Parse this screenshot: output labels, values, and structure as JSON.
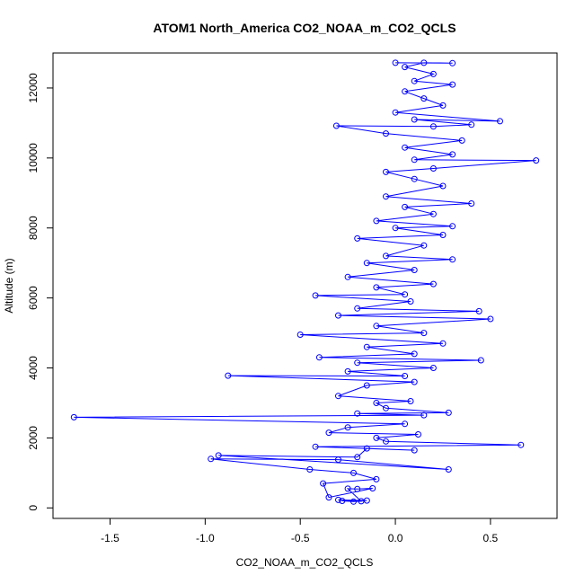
{
  "chart_data": {
    "type": "scatter",
    "title": "ATOM1 North_America CO2_NOAA_m_CO2_QCLS",
    "xlabel": "CO2_NOAA_m_CO2_QCLS",
    "ylabel": "Altitude (m)",
    "xlim": [
      -1.8,
      0.85
    ],
    "ylim": [
      -300,
      13000
    ],
    "xticks": [
      -1.5,
      -1.0,
      -0.5,
      0.0,
      0.5
    ],
    "xtick_labels": [
      "-1.5",
      "-1.0",
      "-0.5",
      "0.0",
      "0.5"
    ],
    "yticks": [
      0,
      2000,
      4000,
      6000,
      8000,
      10000,
      12000
    ],
    "ytick_labels": [
      "0",
      "2000",
      "4000",
      "6000",
      "8000",
      "10000",
      "12000"
    ],
    "grid": false,
    "series_color": "#0000ff",
    "marker": "open-circle",
    "connected": true,
    "series": [
      {
        "points": [
          [
            -0.28,
            200
          ],
          [
            -0.22,
            180
          ],
          [
            -0.15,
            210
          ],
          [
            -0.3,
            230
          ],
          [
            -0.18,
            190
          ],
          [
            -0.25,
            550
          ],
          [
            -0.2,
            540
          ],
          [
            -0.12,
            560
          ],
          [
            -0.35,
            300
          ],
          [
            -0.38,
            700
          ],
          [
            -0.1,
            820
          ],
          [
            -0.22,
            1000
          ],
          [
            -0.45,
            1100
          ],
          [
            -0.97,
            1400
          ],
          [
            -0.3,
            1380
          ],
          [
            0.28,
            1100
          ],
          [
            -0.93,
            1500
          ],
          [
            -0.2,
            1450
          ],
          [
            -0.15,
            1700
          ],
          [
            0.1,
            1650
          ],
          [
            -0.42,
            1750
          ],
          [
            0.66,
            1800
          ],
          [
            -0.05,
            1900
          ],
          [
            -0.1,
            2000
          ],
          [
            0.12,
            2100
          ],
          [
            -0.35,
            2150
          ],
          [
            -0.25,
            2300
          ],
          [
            0.05,
            2400
          ],
          [
            -1.69,
            2590
          ],
          [
            0.15,
            2650
          ],
          [
            -0.2,
            2700
          ],
          [
            0.28,
            2720
          ],
          [
            -0.05,
            2850
          ],
          [
            -0.1,
            3000
          ],
          [
            0.08,
            3050
          ],
          [
            -0.3,
            3200
          ],
          [
            -0.15,
            3500
          ],
          [
            0.1,
            3600
          ],
          [
            -0.88,
            3780
          ],
          [
            0.05,
            3770
          ],
          [
            -0.25,
            3900
          ],
          [
            0.2,
            4000
          ],
          [
            -0.2,
            4150
          ],
          [
            0.45,
            4220
          ],
          [
            -0.4,
            4300
          ],
          [
            0.1,
            4400
          ],
          [
            -0.15,
            4600
          ],
          [
            0.25,
            4700
          ],
          [
            -0.5,
            4950
          ],
          [
            0.15,
            5000
          ],
          [
            -0.1,
            5200
          ],
          [
            0.5,
            5400
          ],
          [
            -0.3,
            5500
          ],
          [
            0.44,
            5620
          ],
          [
            -0.2,
            5700
          ],
          [
            0.08,
            5900
          ],
          [
            -0.42,
            6070
          ],
          [
            0.05,
            6100
          ],
          [
            -0.1,
            6300
          ],
          [
            0.2,
            6400
          ],
          [
            -0.25,
            6600
          ],
          [
            0.1,
            6800
          ],
          [
            -0.15,
            7000
          ],
          [
            0.3,
            7100
          ],
          [
            -0.05,
            7200
          ],
          [
            0.15,
            7500
          ],
          [
            -0.2,
            7700
          ],
          [
            0.25,
            7800
          ],
          [
            0.0,
            8000
          ],
          [
            0.3,
            8050
          ],
          [
            -0.1,
            8200
          ],
          [
            0.2,
            8400
          ],
          [
            0.05,
            8600
          ],
          [
            0.4,
            8700
          ],
          [
            -0.05,
            8900
          ],
          [
            0.25,
            9200
          ],
          [
            0.1,
            9400
          ],
          [
            -0.05,
            9600
          ],
          [
            0.2,
            9700
          ],
          [
            0.74,
            9930
          ],
          [
            0.1,
            9950
          ],
          [
            0.3,
            10100
          ],
          [
            0.05,
            10300
          ],
          [
            0.35,
            10500
          ],
          [
            -0.05,
            10700
          ],
          [
            -0.31,
            10920
          ],
          [
            0.2,
            10900
          ],
          [
            0.4,
            10950
          ],
          [
            0.1,
            11100
          ],
          [
            0.55,
            11050
          ],
          [
            0.0,
            11300
          ],
          [
            0.25,
            11500
          ],
          [
            0.15,
            11700
          ],
          [
            0.05,
            11900
          ],
          [
            0.3,
            12100
          ],
          [
            0.1,
            12200
          ],
          [
            0.2,
            12400
          ],
          [
            0.05,
            12600
          ],
          [
            0.15,
            12720
          ],
          [
            0.3,
            12710
          ],
          [
            0.0,
            12720
          ]
        ]
      }
    ]
  }
}
